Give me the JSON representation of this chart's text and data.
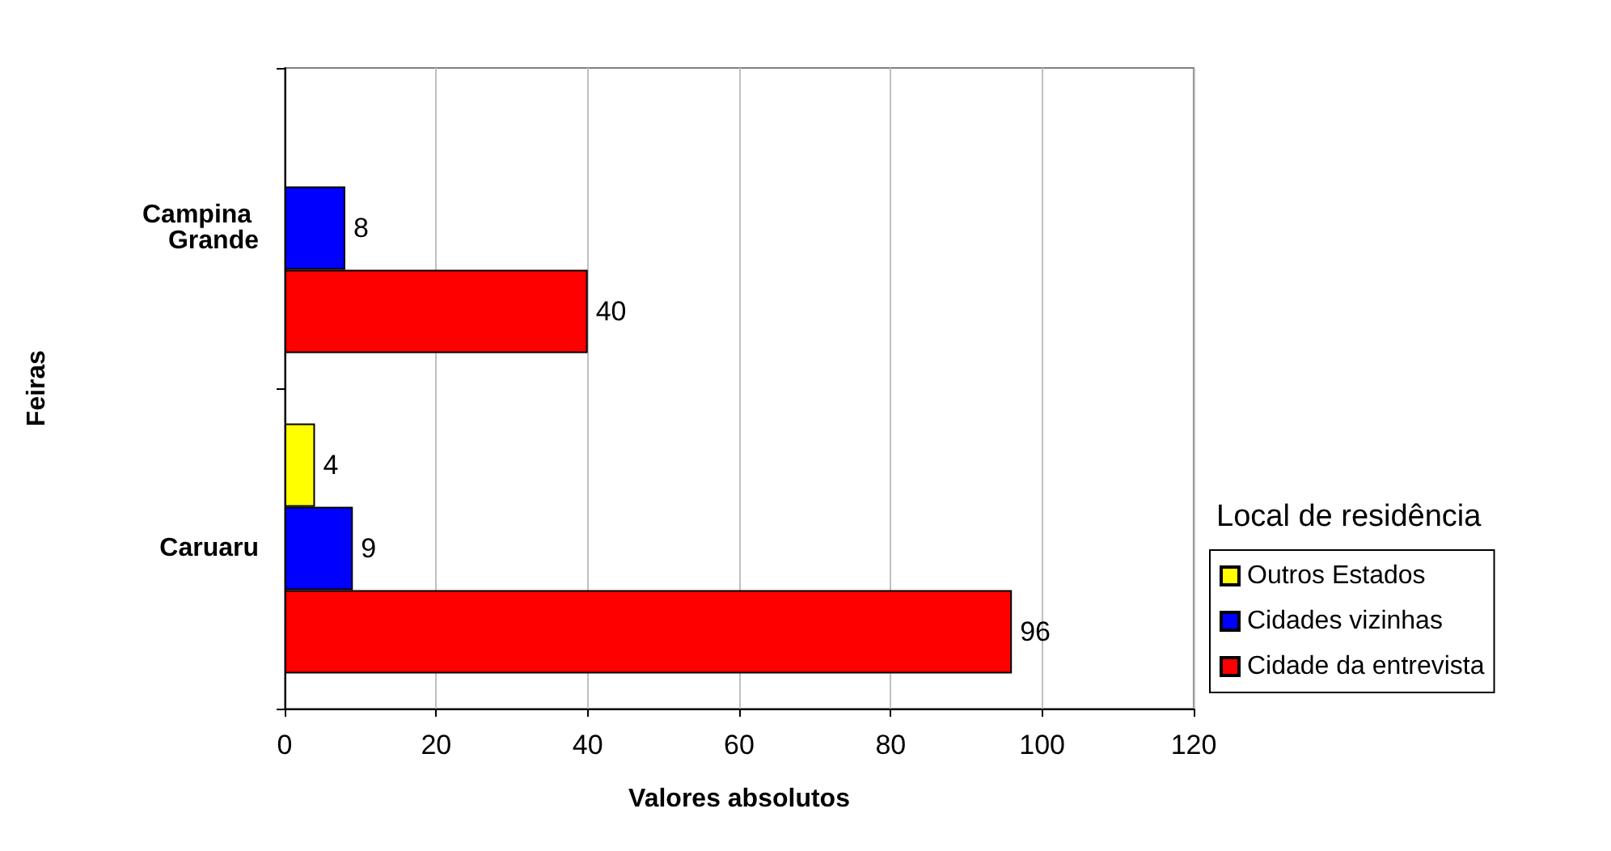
{
  "chart_data": {
    "type": "bar",
    "orientation": "horizontal",
    "categories": [
      "Campina Grande",
      "Caruaru"
    ],
    "series": [
      {
        "name": "Outros Estados",
        "color": "#ffff00",
        "values": [
          null,
          4
        ]
      },
      {
        "name": "Cidades vizinhas",
        "color": "#0000ff",
        "values": [
          8,
          9
        ]
      },
      {
        "name": "Cidade da entrevista",
        "color": "#ff0000",
        "values": [
          40,
          96
        ]
      }
    ],
    "xlabel": "Valores absolutos",
    "ylabel": "Feiras",
    "legend_title": "Local de residência",
    "legend": "right",
    "xlim": [
      0,
      120
    ],
    "xticks": [
      0,
      20,
      40,
      60,
      80,
      100,
      120
    ],
    "grid": "x",
    "data_labels": true
  }
}
